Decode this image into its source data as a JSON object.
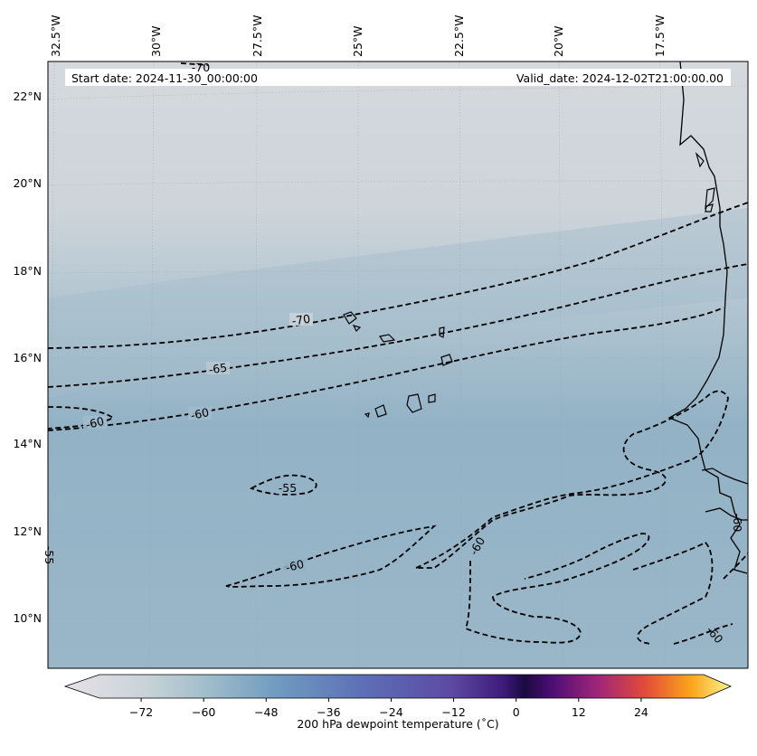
{
  "map": {
    "start_date_text": "Start date: 2024-11-30_00:00:00",
    "valid_date_text": "Valid_date: 2024-12-02T21:00:00.00",
    "lon_labels": [
      "32.5°W",
      "30°W",
      "27.5°W",
      "25°W",
      "22.5°W",
      "20°W",
      "17.5°W"
    ],
    "lat_labels": [
      "22°N",
      "20°N",
      "18°N",
      "16°N",
      "14°N",
      "12°N",
      "10°N"
    ],
    "contour_labels": [
      "-70",
      "-65",
      "-60",
      "-60",
      "-55",
      "-60",
      "-60",
      "-60",
      "-60",
      "-55",
      "-70"
    ],
    "colorbar": {
      "label": "200 hPa dewpoint temperature (˚C)",
      "ticks": [
        "−72",
        "−60",
        "−48",
        "−36",
        "−24",
        "−12",
        "0",
        "12",
        "24"
      ],
      "range": [
        -80,
        36
      ]
    }
  }
}
